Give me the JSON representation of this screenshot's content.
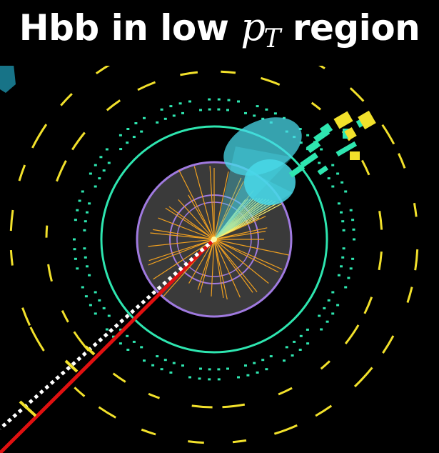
{
  "figure": {
    "title_text": "Hbb in low ",
    "title_var": "p",
    "title_sub": "T",
    "title_end": " region"
  },
  "colors": {
    "background": "#000000",
    "calorimeter_yellow": "#f2e12b",
    "tracker_green": "#2ee6b0",
    "inner_purple": "#a07ae0",
    "tracks_orange": "#f0a020",
    "jet_cone_cyan": "#48d8e8",
    "missing_et_red": "#e01010",
    "muon_dotted_white": "#ffffff"
  }
}
